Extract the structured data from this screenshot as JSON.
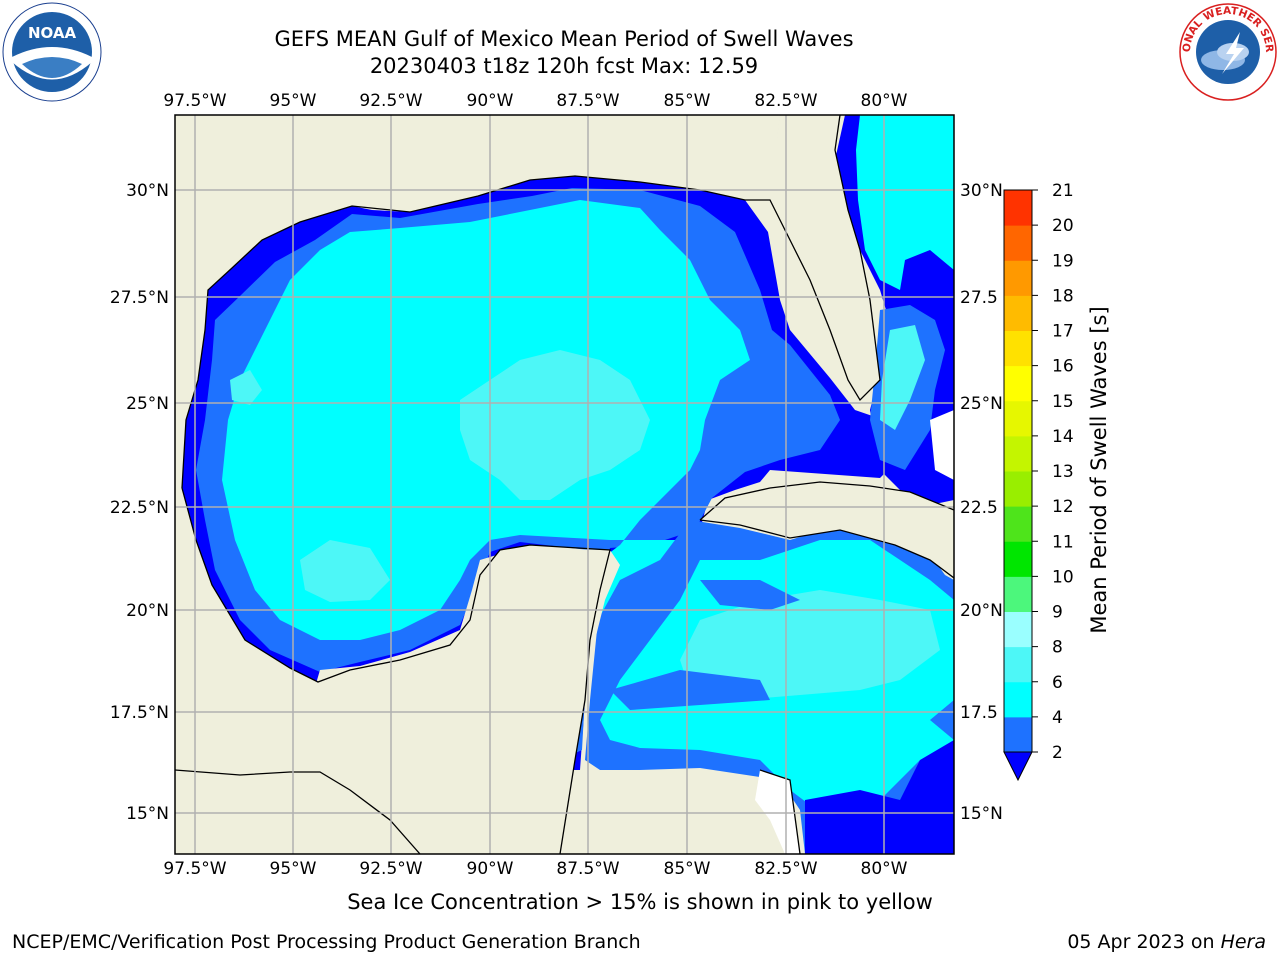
{
  "header": {
    "title": "GEFS MEAN Gulf of Mexico Mean Period of Swell Waves",
    "subtitle": "20230403 t18z 120h fcst   Max: 12.59"
  },
  "logos": {
    "left": "NOAA",
    "left_ring": "NATIONAL OCEANIC AND ATMOSPHERIC ADMINISTRATION · U.S. DEPARTMENT OF COMMERCE",
    "right_ring": "NATIONAL WEATHER SERVICE"
  },
  "map": {
    "lon_labels": [
      "97.5°W",
      "95°W",
      "92.5°W",
      "90°W",
      "87.5°W",
      "85°W",
      "82.5°W",
      "80°W"
    ],
    "lat_labels_left": [
      "30°N",
      "27.5°N",
      "25°N",
      "22.5°N",
      "20°N",
      "17.5°N",
      "15°N"
    ],
    "lat_labels_right": [
      "30°N",
      "27.5",
      "25°N",
      "22.5",
      "20°N",
      "17.5",
      "15°N"
    ],
    "colors": {
      "land": "#efefdc",
      "ocean_low": "#0000ff",
      "ocean_mid": "#1e72ff",
      "ocean_cyan": "#00ffff",
      "ocean_light": "#4df7f7",
      "ocean_pale": "#9affff",
      "grid": "#b0b0b0"
    }
  },
  "colorbar": {
    "label": "Mean Period of Swell Waves [s]",
    "ticks": [
      "2",
      "4",
      "6",
      "8",
      "9",
      "10",
      "11",
      "12",
      "13",
      "14",
      "15",
      "16",
      "17",
      "18",
      "19",
      "20",
      "21"
    ],
    "bins": [
      "#1e72ff",
      "#00ffff",
      "#4df7f7",
      "#9affff",
      "#4cf77c",
      "#00e600",
      "#4ee41b",
      "#99ee00",
      "#c4f500",
      "#e6f700",
      "#ffff00",
      "#ffe100",
      "#ffbb00",
      "#ff9900",
      "#ff6600",
      "#ff3300",
      "#ff0000"
    ],
    "extend_color": "#0000ff"
  },
  "caption": "Sea Ice Concentration > 15% is shown in pink to yellow",
  "footer": {
    "left": "NCEP/EMC/Verification Post Processing Product Generation Branch",
    "right_date": "05 Apr 2023 on ",
    "right_host": "Hera"
  }
}
